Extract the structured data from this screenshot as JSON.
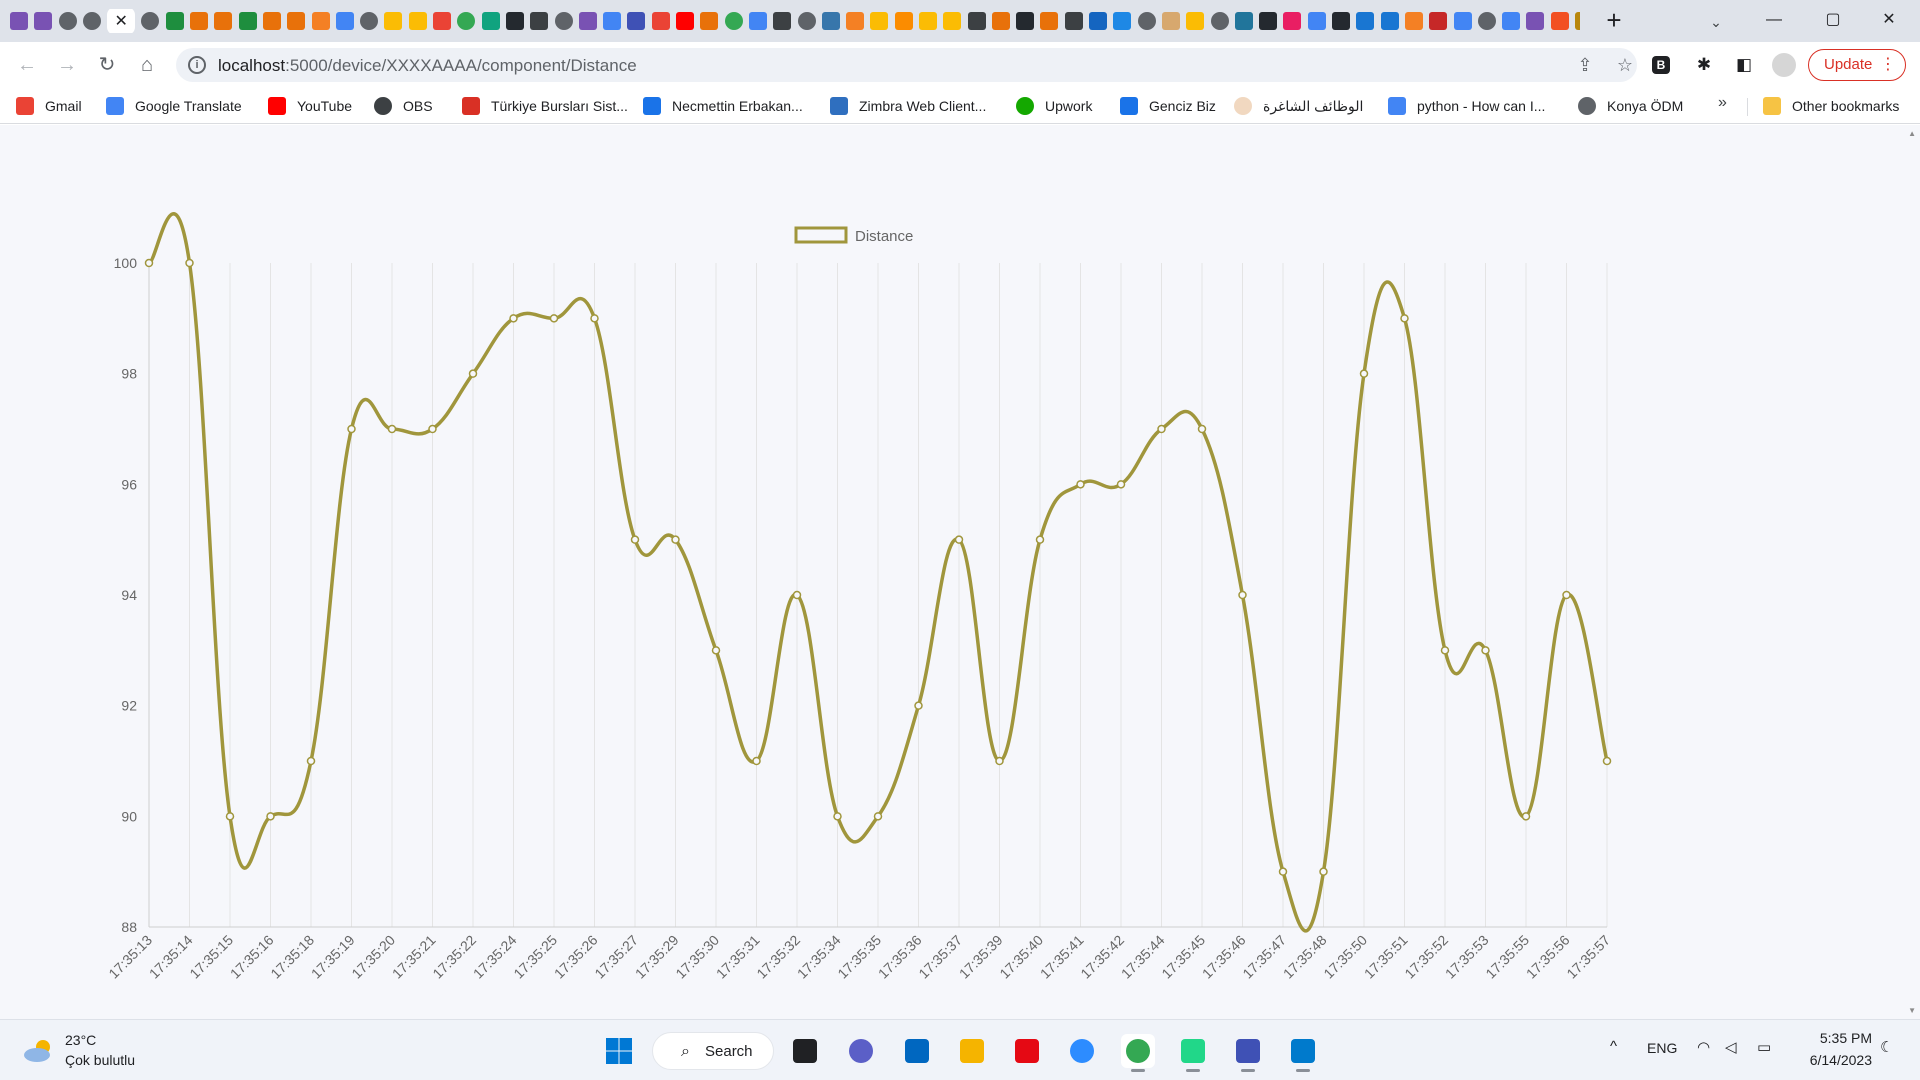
{
  "browser": {
    "active_tab": {
      "close_glyph": "✕"
    },
    "new_tab_glyph": "+",
    "tab_search_glyph": "⌄",
    "window_controls": {
      "minimize": "—",
      "maximize": "▢",
      "close": "✕"
    },
    "tab_favicons": [
      {
        "icon": "bootstrap-b-icon",
        "color": "#7952b3"
      },
      {
        "icon": "bootstrap-b-icon",
        "color": "#7952b3"
      },
      {
        "icon": "globe-icon",
        "color": "#5f6368"
      },
      {
        "icon": "globe-icon",
        "color": "#5f6368"
      },
      {
        "icon": "globe-icon",
        "color": "#5f6368"
      },
      {
        "icon": "sheets-icon",
        "color": "#1e8e3e"
      },
      {
        "icon": "gitlab-icon",
        "color": "#e8710a"
      },
      {
        "icon": "gitlab-icon",
        "color": "#e8710a"
      },
      {
        "icon": "sheets-icon",
        "color": "#1e8e3e"
      },
      {
        "icon": "gitlab-icon",
        "color": "#e8710a"
      },
      {
        "icon": "gitlab-icon",
        "color": "#e8710a"
      },
      {
        "icon": "stackoverflow-icon",
        "color": "#f48024"
      },
      {
        "icon": "docs-icon",
        "color": "#4285f4"
      },
      {
        "icon": "globe-icon",
        "color": "#5f6368"
      },
      {
        "icon": "box-icon",
        "color": "#fbbc04"
      },
      {
        "icon": "box-icon",
        "color": "#fbbc04"
      },
      {
        "icon": "gmail-icon",
        "color": "#ea4335"
      },
      {
        "icon": "chrome-icon",
        "color": "#34a853"
      },
      {
        "icon": "chatgpt-icon",
        "color": "#10a37f"
      },
      {
        "icon": "github-icon",
        "color": "#24292f"
      },
      {
        "icon": "book-icon",
        "color": "#3c4043"
      },
      {
        "icon": "globe-icon",
        "color": "#5f6368"
      },
      {
        "icon": "bootstrap-b-icon",
        "color": "#7952b3"
      },
      {
        "icon": "translate-icon",
        "color": "#4285f4"
      },
      {
        "icon": "terminal-icon",
        "color": "#3f51b5"
      },
      {
        "icon": "gmail-icon",
        "color": "#ea4335"
      },
      {
        "icon": "youtube-icon",
        "color": "#ff0000"
      },
      {
        "icon": "gitlab-icon",
        "color": "#e8710a"
      },
      {
        "icon": "chrome-icon",
        "color": "#34a853"
      },
      {
        "icon": "google-g-icon",
        "color": "#4285f4"
      },
      {
        "icon": "book-icon",
        "color": "#3c4043"
      },
      {
        "icon": "globe-icon",
        "color": "#5f6368"
      },
      {
        "icon": "python-icon",
        "color": "#3776ab"
      },
      {
        "icon": "stackoverflow-icon",
        "color": "#f48024"
      },
      {
        "icon": "box-icon",
        "color": "#fbbc04"
      },
      {
        "icon": "box-icon",
        "color": "#fb8c00"
      },
      {
        "icon": "box-icon",
        "color": "#fbbc04"
      },
      {
        "icon": "box-icon",
        "color": "#fbbc04"
      },
      {
        "icon": "tools-icon",
        "color": "#3c4043"
      },
      {
        "icon": "ef-icon",
        "color": "#e8710a"
      },
      {
        "icon": "github-icon",
        "color": "#24292f"
      },
      {
        "icon": "shield-icon",
        "color": "#e8710a"
      },
      {
        "icon": "grid-icon",
        "color": "#3c4043"
      },
      {
        "icon": "r-icon",
        "color": "#1565c0"
      },
      {
        "icon": "p-icon",
        "color": "#1e88e5"
      },
      {
        "icon": "globe-icon",
        "color": "#5f6368"
      },
      {
        "icon": "face-icon",
        "color": "#d7a86e"
      },
      {
        "icon": "box-icon",
        "color": "#fbbc04"
      },
      {
        "icon": "globe-icon",
        "color": "#5f6368"
      },
      {
        "icon": "wordpress-icon",
        "color": "#21759b"
      },
      {
        "icon": "github-icon",
        "color": "#24292f"
      },
      {
        "icon": "flower-icon",
        "color": "#e91e63"
      },
      {
        "icon": "google-g-icon",
        "color": "#4285f4"
      },
      {
        "icon": "github-icon",
        "color": "#24292f"
      },
      {
        "icon": "layers-icon",
        "color": "#1976d2"
      },
      {
        "icon": "layers-icon",
        "color": "#1976d2"
      },
      {
        "icon": "stackoverflow-icon",
        "color": "#f48024"
      },
      {
        "icon": "magnifier-icon",
        "color": "#c62828"
      },
      {
        "icon": "google-g-icon",
        "color": "#4285f4"
      },
      {
        "icon": "globe-icon",
        "color": "#5f6368"
      },
      {
        "icon": "google-g-icon",
        "color": "#4285f4"
      },
      {
        "icon": "bootstrap-b-icon",
        "color": "#7952b3"
      },
      {
        "icon": "microsoft-icon",
        "color": "#f25022"
      },
      {
        "icon": "nuget-icon",
        "color": "#b8860b"
      },
      {
        "icon": "globe-icon",
        "color": "#5f6368"
      }
    ],
    "url": {
      "host": "localhost",
      "path": ":5000/device/XXXXAAAA/component/Distance"
    },
    "update_label": "Update",
    "bookmarks": [
      {
        "label": "Gmail",
        "icon": "gmail-icon",
        "color": "#ea4335"
      },
      {
        "label": "Google Translate",
        "icon": "translate-icon",
        "color": "#4285f4"
      },
      {
        "label": "YouTube",
        "icon": "youtube-icon",
        "color": "#ff0000"
      },
      {
        "label": "OBS",
        "icon": "obs-icon",
        "color": "#3c4043"
      },
      {
        "label": "Türkiye Bursları Sist...",
        "icon": "tulip-icon",
        "color": "#d93025"
      },
      {
        "label": "Necmettin Erbakan...",
        "icon": "university-icon",
        "color": "#1a73e8"
      },
      {
        "label": "Zimbra Web Client...",
        "icon": "zimbra-icon",
        "color": "#2f6fbf"
      },
      {
        "label": "Upwork",
        "icon": "upwork-icon",
        "color": "#14a800"
      },
      {
        "label": "Genciz Biz",
        "icon": "genciz-icon",
        "color": "#1a73e8"
      },
      {
        "label": "الوظائف الشاغرة",
        "icon": "circle-icon",
        "color": "#f1d8c0"
      },
      {
        "label": "python - How can I...",
        "icon": "dots-icon",
        "color": "#4285f4"
      },
      {
        "label": "Konya ÖDM",
        "icon": "globe-icon",
        "color": "#5f6368"
      }
    ],
    "bookmarks_more": "»",
    "other_bookmarks": "Other bookmarks"
  },
  "chart_data": {
    "type": "line",
    "legend": [
      "Distance"
    ],
    "legend_position": "top",
    "x": [
      "17:35:13",
      "17:35:14",
      "17:35:15",
      "17:35:16",
      "17:35:18",
      "17:35:19",
      "17:35:20",
      "17:35:21",
      "17:35:22",
      "17:35:24",
      "17:35:25",
      "17:35:26",
      "17:35:27",
      "17:35:29",
      "17:35:30",
      "17:35:31",
      "17:35:32",
      "17:35:34",
      "17:35:35",
      "17:35:36",
      "17:35:37",
      "17:35:39",
      "17:35:40",
      "17:35:41",
      "17:35:42",
      "17:35:44",
      "17:35:45",
      "17:35:46",
      "17:35:47",
      "17:35:48",
      "17:35:50",
      "17:35:51",
      "17:35:52",
      "17:35:53",
      "17:35:55",
      "17:35:56",
      "17:35:57"
    ],
    "series": [
      {
        "name": "Distance",
        "color": "#a0963c",
        "values": [
          100,
          100,
          90,
          90,
          91,
          97,
          97,
          97,
          98,
          99,
          99,
          99,
          95,
          95,
          93,
          91,
          94,
          90,
          90,
          92,
          95,
          91,
          95,
          96,
          96,
          97,
          97,
          94,
          89,
          89,
          98,
          99,
          93,
          93,
          90,
          94,
          91
        ]
      }
    ],
    "ylim": [
      88,
      100
    ],
    "yticks": [
      88,
      90,
      92,
      94,
      96,
      98,
      100
    ],
    "grid": true,
    "curve": "smooth",
    "xlabel": "",
    "ylabel": ""
  },
  "taskbar": {
    "weather": {
      "temp": "23°C",
      "desc": "Çok bulutlu"
    },
    "search_label": "Search",
    "apps": [
      {
        "name": "task-view",
        "color": "#202124"
      },
      {
        "name": "teams-chat",
        "color": "#5b5fc7"
      },
      {
        "name": "store",
        "color": "#0067c0"
      },
      {
        "name": "file-explorer",
        "color": "#f5b400"
      },
      {
        "name": "netflix",
        "color": "#e50914"
      },
      {
        "name": "zoom",
        "color": "#2d8cff"
      },
      {
        "name": "chrome",
        "color": "#34a853"
      },
      {
        "name": "pycharm",
        "color": "#21d789"
      },
      {
        "name": "network-app",
        "color": "#3f51b5"
      },
      {
        "name": "vscode",
        "color": "#007acc"
      }
    ],
    "tray": {
      "lang": "ENG",
      "chevron": "^"
    },
    "clock": {
      "time": "5:35 PM",
      "date": "6/14/2023"
    }
  }
}
